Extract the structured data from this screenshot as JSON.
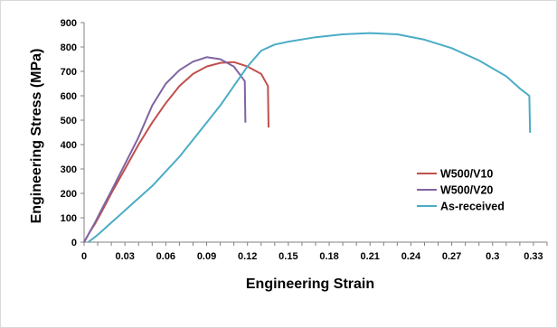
{
  "chart_data": {
    "type": "line",
    "xlabel": "Engineering Strain",
    "ylabel": "Engineering Stress (MPa)",
    "xlim": [
      0,
      0.34
    ],
    "ylim": [
      0,
      900
    ],
    "x_ticks": [
      "0",
      "0.03",
      "0.06",
      "0.09",
      "0.12",
      "0.15",
      "0.18",
      "0.21",
      "0.24",
      "0.27",
      "0.3",
      "0.33"
    ],
    "y_ticks": [
      "0",
      "100",
      "200",
      "300",
      "400",
      "500",
      "600",
      "700",
      "800",
      "900"
    ],
    "grid": false,
    "legend_position": "right",
    "series": [
      {
        "name": "W500/V10",
        "color": "#c0504d",
        "points": [
          [
            0,
            0
          ],
          [
            0.004,
            40
          ],
          [
            0.008,
            75
          ],
          [
            0.012,
            115
          ],
          [
            0.02,
            200
          ],
          [
            0.03,
            300
          ],
          [
            0.04,
            400
          ],
          [
            0.05,
            490
          ],
          [
            0.06,
            570
          ],
          [
            0.07,
            640
          ],
          [
            0.08,
            690
          ],
          [
            0.09,
            720
          ],
          [
            0.1,
            735
          ],
          [
            0.11,
            738
          ],
          [
            0.12,
            720
          ],
          [
            0.13,
            690
          ],
          [
            0.135,
            640
          ],
          [
            0.1355,
            470
          ]
        ]
      },
      {
        "name": "W500/V20",
        "color": "#8064a2",
        "points": [
          [
            0,
            0
          ],
          [
            0.004,
            40
          ],
          [
            0.008,
            80
          ],
          [
            0.012,
            125
          ],
          [
            0.02,
            210
          ],
          [
            0.03,
            320
          ],
          [
            0.04,
            430
          ],
          [
            0.05,
            560
          ],
          [
            0.06,
            650
          ],
          [
            0.07,
            705
          ],
          [
            0.08,
            740
          ],
          [
            0.09,
            758
          ],
          [
            0.1,
            750
          ],
          [
            0.11,
            720
          ],
          [
            0.118,
            660
          ],
          [
            0.1185,
            490
          ]
        ]
      },
      {
        "name": "As-received",
        "color": "#4bacc6",
        "points": [
          [
            0.003,
            0
          ],
          [
            0.01,
            30
          ],
          [
            0.02,
            80
          ],
          [
            0.03,
            130
          ],
          [
            0.04,
            180
          ],
          [
            0.05,
            230
          ],
          [
            0.06,
            290
          ],
          [
            0.07,
            350
          ],
          [
            0.08,
            420
          ],
          [
            0.09,
            490
          ],
          [
            0.1,
            560
          ],
          [
            0.11,
            640
          ],
          [
            0.12,
            720
          ],
          [
            0.13,
            785
          ],
          [
            0.14,
            810
          ],
          [
            0.15,
            822
          ],
          [
            0.17,
            840
          ],
          [
            0.19,
            852
          ],
          [
            0.21,
            857
          ],
          [
            0.23,
            852
          ],
          [
            0.25,
            830
          ],
          [
            0.27,
            795
          ],
          [
            0.29,
            745
          ],
          [
            0.31,
            680
          ],
          [
            0.32,
            630
          ],
          [
            0.327,
            600
          ],
          [
            0.3275,
            448
          ]
        ]
      }
    ]
  }
}
